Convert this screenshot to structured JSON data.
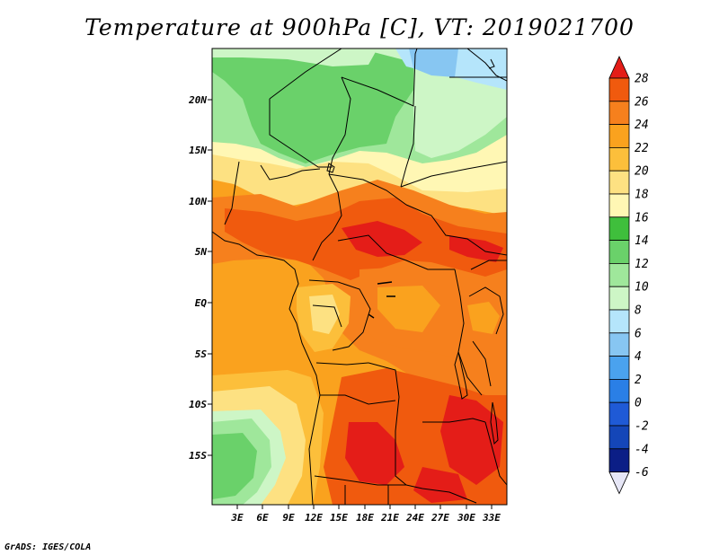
{
  "title": "Temperature at 900hPa [C], VT: 2019021700",
  "footer": "GrADS: IGES/COLA",
  "map": {
    "lat_labels": [
      "20N",
      "15N",
      "10N",
      "5N",
      "EQ",
      "5S",
      "10S",
      "15S"
    ],
    "lon_labels": [
      "3E",
      "6E",
      "9E",
      "12E",
      "15E",
      "18E",
      "21E",
      "24E",
      "27E",
      "30E",
      "33E"
    ]
  },
  "colorbar": {
    "labels": [
      "28",
      "26",
      "24",
      "22",
      "20",
      "18",
      "16",
      "14",
      "12",
      "10",
      "8",
      "6",
      "4",
      "2",
      "0",
      "-2",
      "-4",
      "-6"
    ],
    "colors": [
      "#e41d18",
      "#f05a0e",
      "#f6801d",
      "#faa21e",
      "#fcbf3b",
      "#fde182",
      "#fff7b4",
      "#3fbf3c",
      "#6ad16a",
      "#9fe79b",
      "#cdf6c6",
      "#b5e5fb",
      "#87c6f2",
      "#4aa2ee",
      "#2a7fe6",
      "#1f5ad6",
      "#1446b8",
      "#0b1e86"
    ]
  }
}
